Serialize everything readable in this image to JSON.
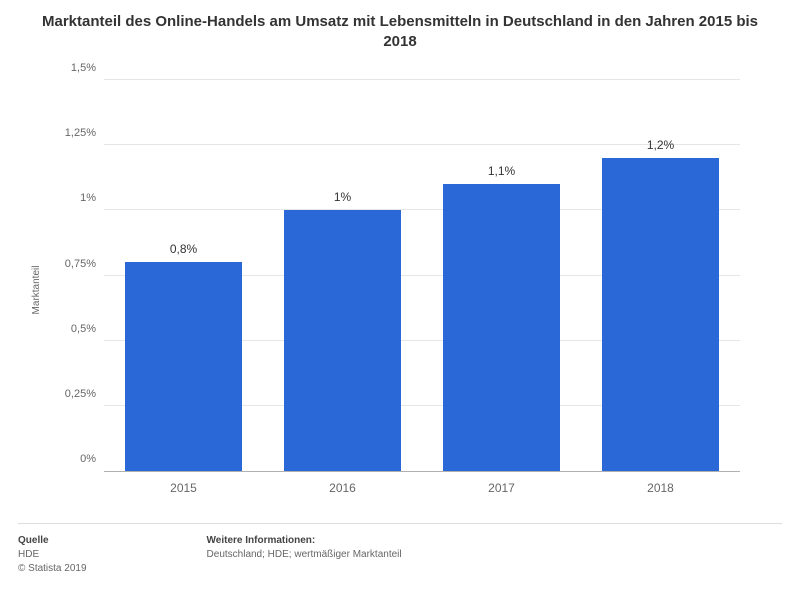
{
  "title": "Marktanteil des Online-Handels am Umsatz mit Lebensmitteln in Deutschland in den Jahren 2015 bis 2018",
  "chart": {
    "type": "bar",
    "ylabel": "Marktanteil",
    "categories": [
      "2015",
      "2016",
      "2017",
      "2018"
    ],
    "values": [
      0.8,
      1.0,
      1.1,
      1.2
    ],
    "value_labels": [
      "0,8%",
      "1%",
      "1,1%",
      "1,2%"
    ],
    "bar_color": "#2a68d8",
    "ylim_max": 1.5,
    "ytick_step": 0.25,
    "ytick_labels": [
      "0%",
      "0,25%",
      "0,5%",
      "0,75%",
      "1%",
      "1,25%",
      "1,5%"
    ],
    "grid_color": "#e6e6e6",
    "background_color": "#ffffff",
    "bar_width_ratio": 0.74,
    "title_fontsize": 15,
    "label_fontsize": 10,
    "tick_fontsize": 11,
    "value_label_fontsize": 12
  },
  "footer": {
    "source_heading": "Quelle",
    "source_line1": "HDE",
    "source_line2": "© Statista 2019",
    "info_heading": "Weitere Informationen:",
    "info_line": "Deutschland; HDE; wertmäßiger Marktanteil"
  }
}
